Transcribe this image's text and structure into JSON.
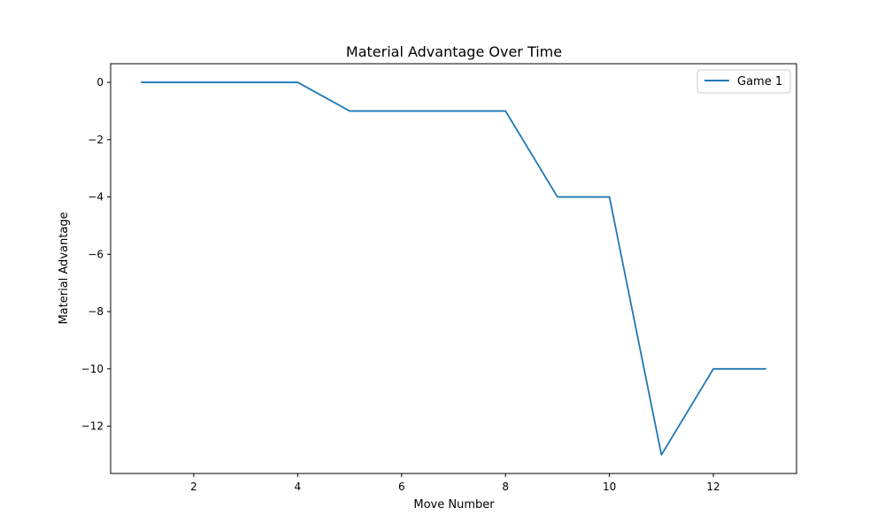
{
  "chart_data": {
    "type": "line",
    "title": "Material Advantage Over Time",
    "xlabel": "Move Number",
    "ylabel": "Material Advantage",
    "xlim": [
      0.4,
      13.6
    ],
    "ylim": [
      -13.65,
      0.65
    ],
    "xticks": [
      2,
      4,
      6,
      8,
      10,
      12
    ],
    "yticks": [
      0,
      -2,
      -4,
      -6,
      -8,
      -10,
      -12
    ],
    "xtick_labels": [
      "2",
      "4",
      "6",
      "8",
      "10",
      "12"
    ],
    "ytick_labels": [
      "0",
      "−2",
      "−4",
      "−6",
      "−8",
      "−10",
      "−12"
    ],
    "grid": false,
    "legend": "top-right",
    "x": [
      1,
      2,
      3,
      4,
      5,
      6,
      7,
      8,
      9,
      10,
      11,
      12,
      13
    ],
    "series": [
      {
        "name": "Game 1",
        "color": "#1f77b4",
        "values": [
          0,
          0,
          0,
          0,
          -1,
          -1,
          -1,
          -1,
          -4,
          -4,
          -13,
          -10,
          -10
        ]
      }
    ]
  }
}
